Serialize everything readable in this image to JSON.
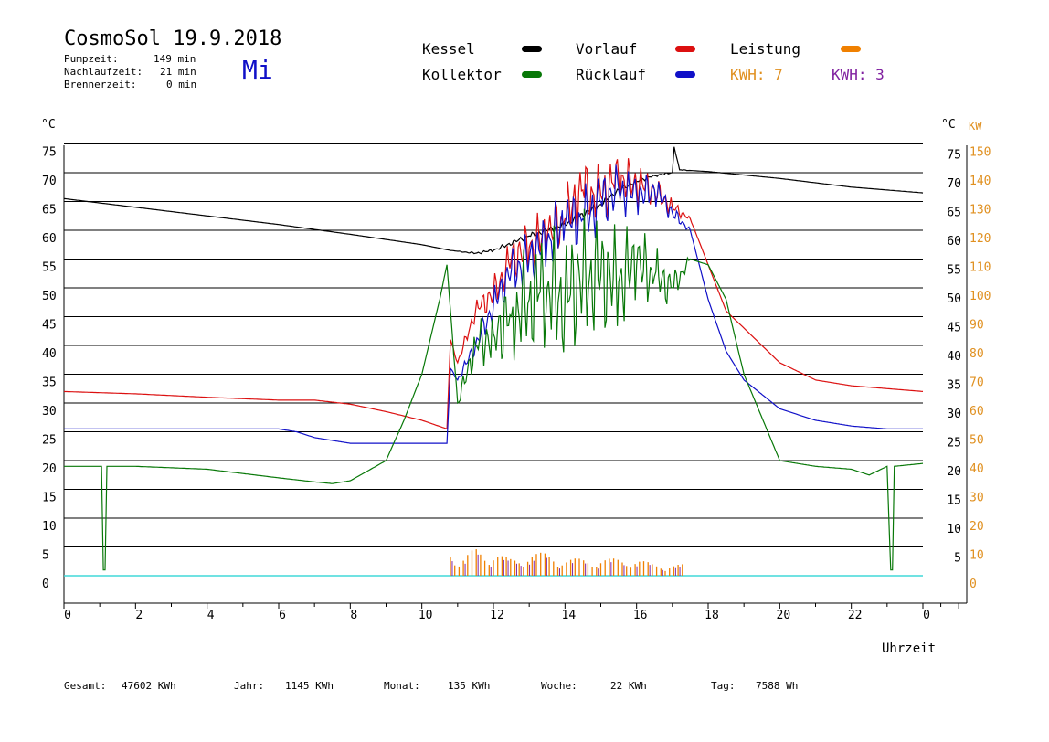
{
  "header": {
    "title": "CosmoSol 19.9.2018",
    "day": "Mi",
    "pumpzeit_label": "Pumpzeit:",
    "pumpzeit_value": "149 min",
    "nachlauf_label": "Nachlaufzeit:",
    "nachlauf_value": "21 min",
    "brenner_label": "Brennerzeit:",
    "brenner_value": "0 min"
  },
  "legend": {
    "kessel": "Kessel",
    "kollektor": "Kollektor",
    "vorlauf": "Vorlauf",
    "ruecklauf": "Rücklauf",
    "leistung": "Leistung",
    "kwh1": "KWH: 7",
    "kwh2": "KWH: 3"
  },
  "footer": {
    "gesamt_label": "Gesamt:",
    "gesamt_value": "47602 KWh",
    "jahr_label": "Jahr:",
    "jahr_value": "1145 KWh",
    "monat_label": "Monat:",
    "monat_value": "135 KWh",
    "woche_label": "Woche:",
    "woche_value": "22 KWh",
    "tag_label": "Tag:",
    "tag_value": "7588 Wh"
  },
  "colors": {
    "kessel": "#000000",
    "kollektor": "#087808",
    "vorlauf": "#dc1010",
    "ruecklauf": "#1010c8",
    "leistung": "#f08000",
    "kwh2": "#8020a0",
    "baseline": "#40d8d8",
    "orange_axis": "#e09020"
  },
  "chart_data": {
    "type": "line",
    "xlabel": "Uhrzeit",
    "ylabel": "°C",
    "y2label": "KW",
    "xlim": [
      0,
      24
    ],
    "ylim": [
      -5,
      80
    ],
    "x_ticks": [
      "0",
      "2",
      "4",
      "6",
      "8",
      "10",
      "12",
      "14",
      "16",
      "18",
      "20",
      "22",
      "0"
    ],
    "y_ticks_left": [
      0,
      5,
      10,
      15,
      20,
      25,
      30,
      35,
      40,
      45,
      50,
      55,
      60,
      65,
      70,
      75
    ],
    "y_ticks_right": [
      5,
      10,
      15,
      20,
      25,
      30,
      35,
      40,
      45,
      50,
      55,
      60,
      65,
      70,
      75
    ],
    "y2_ticks": [
      0,
      10,
      20,
      30,
      40,
      50,
      60,
      70,
      80,
      90,
      100,
      110,
      120,
      130,
      140,
      150
    ],
    "grid": true,
    "series": [
      {
        "name": "Kessel",
        "key": "kessel",
        "x": [
          0,
          2,
          4,
          6,
          8,
          10,
          10.8,
          11.5,
          12,
          13,
          14,
          15,
          15.5,
          16,
          16.5,
          17,
          17.05,
          17.2,
          18,
          20,
          22,
          24
        ],
        "y": [
          65.5,
          64,
          62.5,
          61,
          59.3,
          57.5,
          56.5,
          56,
          56.5,
          59,
          61,
          64.5,
          67,
          68.5,
          69.5,
          70,
          74.5,
          70.5,
          70.2,
          69,
          67.5,
          66.5
        ]
      },
      {
        "name": "Vorlauf",
        "key": "vorlauf",
        "x": [
          0,
          2,
          4,
          6,
          7,
          8,
          9,
          10,
          10.7,
          10.8,
          11,
          11.5,
          12,
          12.5,
          13,
          13.5,
          14,
          14.5,
          15,
          15.5,
          16,
          16.5,
          17,
          17.5,
          18,
          18.5,
          19,
          20,
          21,
          22,
          23,
          24
        ],
        "y": [
          32,
          31.6,
          31,
          30.5,
          30.5,
          29.8,
          28.5,
          27,
          25.5,
          41,
          37,
          46,
          49,
          55,
          57,
          59,
          62,
          67,
          66,
          69,
          68,
          67,
          64,
          62,
          54,
          46,
          43,
          37,
          34,
          33,
          32.5,
          32
        ]
      },
      {
        "name": "Rücklauf",
        "key": "ruecklauf",
        "x": [
          0,
          2,
          4,
          6,
          6.5,
          7,
          8,
          9,
          10,
          10.7,
          10.8,
          11,
          11.5,
          12,
          12.5,
          13,
          13.5,
          14,
          14.5,
          15,
          15.5,
          16,
          16.5,
          17,
          17.5,
          18,
          18.5,
          19,
          20,
          21,
          22,
          23,
          24
        ],
        "y": [
          25.5,
          25.5,
          25.5,
          25.5,
          25,
          24,
          23,
          23,
          23,
          23,
          36,
          34,
          40,
          47,
          53,
          55,
          58,
          61,
          62,
          65,
          67,
          66,
          67,
          63,
          60,
          48,
          39,
          34,
          29,
          27,
          26,
          25.5,
          25.5
        ]
      },
      {
        "name": "Kollektor",
        "key": "kollektor",
        "x": [
          0,
          1.05,
          1.1,
          1.15,
          1.2,
          2,
          4,
          6,
          7,
          7.5,
          8,
          9,
          9.5,
          10,
          10.5,
          10.7,
          11,
          11.5,
          12,
          12.5,
          13,
          13.5,
          14,
          14.5,
          15,
          15.5,
          16,
          16.5,
          17,
          17.5,
          18,
          18.5,
          19,
          20,
          21,
          22,
          22.5,
          23,
          23.1,
          23.15,
          23.2,
          24
        ],
        "y": [
          19,
          19,
          1,
          1,
          19,
          19,
          18.5,
          17,
          16.3,
          16,
          16.5,
          20,
          27,
          35,
          48,
          54,
          30,
          40,
          42,
          45,
          48,
          50,
          48,
          52,
          52,
          51,
          54,
          52,
          50,
          55,
          54,
          48,
          35,
          20,
          19,
          18.5,
          17.5,
          19,
          1,
          1,
          19,
          19.5
        ]
      },
      {
        "name": "Leistung",
        "key": "leistung",
        "x": [
          0,
          10.75,
          10.8,
          11,
          11.5,
          12,
          12.5,
          13,
          13.5,
          14,
          14.5,
          15,
          15.5,
          16,
          16.5,
          17,
          17.3,
          17.35,
          24
        ],
        "y": [
          0,
          0,
          6,
          2,
          5,
          4,
          3,
          4,
          4,
          3,
          3,
          3,
          3,
          3,
          2,
          2,
          2,
          0,
          0
        ]
      }
    ]
  }
}
